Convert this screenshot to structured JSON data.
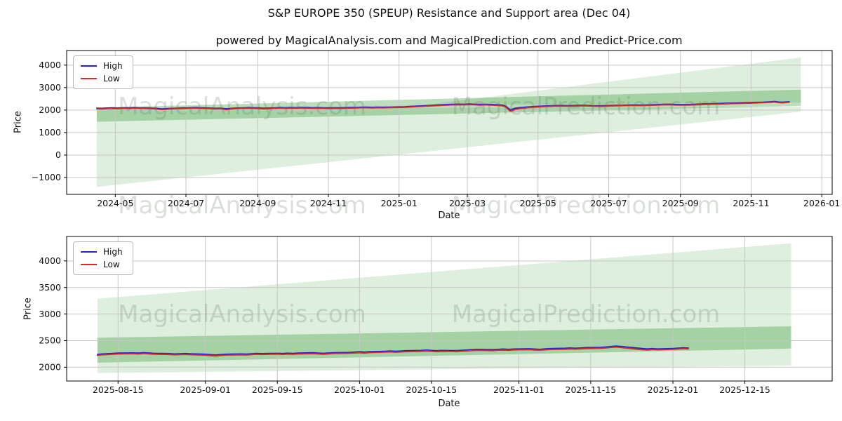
{
  "figure": {
    "title": "S&P EUROPE 350 (SPEUP) Resistance and Support area (Dec 04)",
    "subtitle": "powered by MagicalAnalysis.com and MagicalPrediction.com and Predict-Price.com"
  },
  "watermark": {
    "analysis": "MagicalAnalysis.com",
    "prediction": "MagicalPrediction.com"
  },
  "colors": {
    "high_line": "#2424cc",
    "low_line": "#d42a2a",
    "band_green": "#008000",
    "grid": "#c6c6c6"
  },
  "chart_data": [
    {
      "type": "line",
      "title": "",
      "xlabel": "Date",
      "ylabel": "Price",
      "xlim": [
        "2024-03-20",
        "2026-01-10"
      ],
      "ylim": [
        -1750,
        4650
      ],
      "xticks": [
        "2024-05",
        "2024-07",
        "2024-09",
        "2024-11",
        "2025-01",
        "2025-03",
        "2025-05",
        "2025-07",
        "2025-09",
        "2025-11",
        "2026-01"
      ],
      "yticks": [
        -1000,
        0,
        1000,
        2000,
        3000,
        4000
      ],
      "grid": true,
      "legend_position": "upper left",
      "series": [
        {
          "name": "High",
          "color": "#2424cc"
        },
        {
          "name": "Low",
          "color": "#d42a2a"
        }
      ],
      "bands": [
        {
          "name": "support-area-light",
          "color": "#008000",
          "opacity": 0.13,
          "points": [
            [
              "2024-04-15",
              2060
            ],
            [
              "2025-12-14",
              2140
            ],
            [
              "2025-12-14",
              1930
            ],
            [
              "2024-04-15",
              -1420
            ]
          ]
        },
        {
          "name": "resistance-fan-light",
          "color": "#008000",
          "opacity": 0.13,
          "points": [
            [
              "2025-01-20",
              2210
            ],
            [
              "2025-12-14",
              4340
            ],
            [
              "2025-12-14",
              2330
            ]
          ]
        },
        {
          "name": "support-band-medium",
          "color": "#008000",
          "opacity": 0.26,
          "points": [
            [
              "2024-04-15",
              2110
            ],
            [
              "2025-12-14",
              2910
            ],
            [
              "2025-12-14",
              2180
            ],
            [
              "2024-04-15",
              1480
            ]
          ]
        }
      ],
      "rows": [
        [
          "2024-04-15",
          2085,
          2058
        ],
        [
          "2024-04-19",
          2076,
          2050
        ],
        [
          "2024-04-24",
          2092,
          2066
        ],
        [
          "2024-04-29",
          2098,
          2072
        ],
        [
          "2024-05-03",
          2090,
          2063
        ],
        [
          "2024-05-08",
          2105,
          2080
        ],
        [
          "2024-05-13",
          2098,
          2071
        ],
        [
          "2024-05-17",
          2112,
          2086
        ],
        [
          "2024-05-22",
          2104,
          2077
        ],
        [
          "2024-05-27",
          2097,
          2070
        ],
        [
          "2024-05-31",
          2090,
          2062
        ],
        [
          "2024-06-05",
          2082,
          2053
        ],
        [
          "2024-06-10",
          2052,
          2022
        ],
        [
          "2024-06-14",
          2066,
          2038
        ],
        [
          "2024-06-19",
          2078,
          2051
        ],
        [
          "2024-06-24",
          2088,
          2061
        ],
        [
          "2024-06-28",
          2096,
          2069
        ],
        [
          "2024-07-03",
          2104,
          2078
        ],
        [
          "2024-07-08",
          2112,
          2086
        ],
        [
          "2024-07-12",
          2106,
          2079
        ],
        [
          "2024-07-17",
          2098,
          2070
        ],
        [
          "2024-07-22",
          2090,
          2061
        ],
        [
          "2024-07-26",
          2082,
          2052
        ],
        [
          "2024-07-31",
          2088,
          2058
        ],
        [
          "2024-08-05",
          2060,
          2018
        ],
        [
          "2024-08-09",
          2078,
          2048
        ],
        [
          "2024-08-14",
          2094,
          2068
        ],
        [
          "2024-08-19",
          2102,
          2077
        ],
        [
          "2024-08-23",
          2110,
          2085
        ],
        [
          "2024-08-28",
          2106,
          2081
        ],
        [
          "2024-09-02",
          2096,
          2068
        ],
        [
          "2024-09-06",
          2084,
          2055
        ],
        [
          "2024-09-11",
          2092,
          2064
        ],
        [
          "2024-09-16",
          2104,
          2078
        ],
        [
          "2024-09-20",
          2112,
          2087
        ],
        [
          "2024-09-25",
          2108,
          2082
        ],
        [
          "2024-09-30",
          2116,
          2091
        ],
        [
          "2024-10-04",
          2110,
          2083
        ],
        [
          "2024-10-09",
          2120,
          2094
        ],
        [
          "2024-10-14",
          2114,
          2088
        ],
        [
          "2024-10-18",
          2106,
          2079
        ],
        [
          "2024-10-23",
          2112,
          2085
        ],
        [
          "2024-10-28",
          2104,
          2076
        ],
        [
          "2024-11-01",
          2098,
          2069
        ],
        [
          "2024-11-06",
          2106,
          2078
        ],
        [
          "2024-11-11",
          2100,
          2072
        ],
        [
          "2024-11-15",
          2108,
          2081
        ],
        [
          "2024-11-20",
          2114,
          2088
        ],
        [
          "2024-11-25",
          2120,
          2095
        ],
        [
          "2024-11-29",
          2126,
          2101
        ],
        [
          "2024-12-04",
          2130,
          2104
        ],
        [
          "2024-12-09",
          2124,
          2097
        ],
        [
          "2024-12-13",
          2132,
          2106
        ],
        [
          "2024-12-18",
          2126,
          2099
        ],
        [
          "2024-12-23",
          2134,
          2108
        ],
        [
          "2024-12-30",
          2140,
          2114
        ],
        [
          "2025-01-06",
          2150,
          2122
        ],
        [
          "2025-01-10",
          2162,
          2135
        ],
        [
          "2025-01-15",
          2175,
          2148
        ],
        [
          "2025-01-20",
          2188,
          2160
        ],
        [
          "2025-01-24",
          2200,
          2172
        ],
        [
          "2025-01-29",
          2212,
          2184
        ],
        [
          "2025-02-03",
          2224,
          2196
        ],
        [
          "2025-02-07",
          2236,
          2208
        ],
        [
          "2025-02-12",
          2248,
          2220
        ],
        [
          "2025-02-17",
          2258,
          2230
        ],
        [
          "2025-02-21",
          2266,
          2238
        ],
        [
          "2025-02-26",
          2260,
          2231
        ],
        [
          "2025-03-03",
          2272,
          2244
        ],
        [
          "2025-03-07",
          2262,
          2233
        ],
        [
          "2025-03-12",
          2252,
          2222
        ],
        [
          "2025-03-17",
          2258,
          2229
        ],
        [
          "2025-03-21",
          2248,
          2218
        ],
        [
          "2025-03-26",
          2240,
          2210
        ],
        [
          "2025-03-31",
          2222,
          2190
        ],
        [
          "2025-04-03",
          2180,
          2140
        ],
        [
          "2025-04-07",
          2005,
          1952
        ],
        [
          "2025-04-09",
          2040,
          1975
        ],
        [
          "2025-04-11",
          2080,
          2030
        ],
        [
          "2025-04-16",
          2112,
          2070
        ],
        [
          "2025-04-22",
          2140,
          2105
        ],
        [
          "2025-04-28",
          2162,
          2130
        ],
        [
          "2025-05-05",
          2178,
          2150
        ],
        [
          "2025-05-12",
          2192,
          2165
        ],
        [
          "2025-05-19",
          2205,
          2178
        ],
        [
          "2025-05-27",
          2198,
          2170
        ],
        [
          "2025-06-03",
          2208,
          2180
        ],
        [
          "2025-06-10",
          2215,
          2188
        ],
        [
          "2025-06-17",
          2200,
          2172
        ],
        [
          "2025-06-24",
          2192,
          2163
        ],
        [
          "2025-07-01",
          2205,
          2178
        ],
        [
          "2025-07-08",
          2215,
          2188
        ],
        [
          "2025-07-15",
          2222,
          2195
        ],
        [
          "2025-07-22",
          2230,
          2203
        ],
        [
          "2025-07-29",
          2224,
          2196
        ],
        [
          "2025-08-05",
          2235,
          2208
        ],
        [
          "2025-08-12",
          2245,
          2218
        ],
        [
          "2025-08-19",
          2262,
          2236
        ],
        [
          "2025-08-26",
          2255,
          2228
        ],
        [
          "2025-09-02",
          2246,
          2218
        ],
        [
          "2025-09-09",
          2252,
          2225
        ],
        [
          "2025-09-16",
          2265,
          2238
        ],
        [
          "2025-09-23",
          2278,
          2252
        ],
        [
          "2025-09-30",
          2288,
          2262
        ],
        [
          "2025-10-07",
          2298,
          2272
        ],
        [
          "2025-10-14",
          2312,
          2286
        ],
        [
          "2025-10-21",
          2320,
          2294
        ],
        [
          "2025-10-28",
          2330,
          2304
        ],
        [
          "2025-11-04",
          2342,
          2316
        ],
        [
          "2025-11-11",
          2352,
          2326
        ],
        [
          "2025-11-18",
          2372,
          2346
        ],
        [
          "2025-11-21",
          2388,
          2360
        ],
        [
          "2025-11-25",
          2360,
          2330
        ],
        [
          "2025-11-28",
          2352,
          2322
        ],
        [
          "2025-12-02",
          2366,
          2340
        ],
        [
          "2025-12-04",
          2372,
          2348
        ]
      ]
    },
    {
      "type": "line",
      "title": "",
      "xlabel": "Date",
      "ylabel": "Price",
      "xlim": [
        "2025-08-05",
        "2026-01-01"
      ],
      "ylim": [
        1740,
        4460
      ],
      "xticks": [
        "2025-08-15",
        "2025-09-01",
        "2025-09-15",
        "2025-10-01",
        "2025-10-15",
        "2025-11-01",
        "2025-11-15",
        "2025-12-01",
        "2025-12-15"
      ],
      "yticks": [
        2000,
        2500,
        3000,
        3500,
        4000
      ],
      "grid": true,
      "legend_position": "upper left",
      "series": [
        {
          "name": "High",
          "color": "#2424cc"
        },
        {
          "name": "Low",
          "color": "#d42a2a"
        }
      ],
      "bands": [
        {
          "name": "prediction-fan-light",
          "color": "#008000",
          "opacity": 0.13,
          "points": [
            [
              "2025-08-11",
              3290
            ],
            [
              "2025-12-24",
              4330
            ],
            [
              "2025-12-24",
              2030
            ],
            [
              "2025-08-11",
              1890
            ]
          ]
        },
        {
          "name": "support-band-medium",
          "color": "#008000",
          "opacity": 0.26,
          "points": [
            [
              "2025-08-11",
              2555
            ],
            [
              "2025-12-24",
              2770
            ],
            [
              "2025-12-24",
              2350
            ],
            [
              "2025-08-11",
              2085
            ]
          ]
        }
      ],
      "rows": [
        [
          "2025-08-11",
          2242,
          2225
        ],
        [
          "2025-08-12",
          2250,
          2232
        ],
        [
          "2025-08-13",
          2255,
          2238
        ],
        [
          "2025-08-14",
          2260,
          2243
        ],
        [
          "2025-08-15",
          2265,
          2248
        ],
        [
          "2025-08-18",
          2270,
          2254
        ],
        [
          "2025-08-19",
          2266,
          2249
        ],
        [
          "2025-08-20",
          2272,
          2256
        ],
        [
          "2025-08-21",
          2268,
          2251
        ],
        [
          "2025-08-22",
          2262,
          2245
        ],
        [
          "2025-08-25",
          2256,
          2239
        ],
        [
          "2025-08-26",
          2250,
          2233
        ],
        [
          "2025-08-27",
          2254,
          2237
        ],
        [
          "2025-08-28",
          2258,
          2241
        ],
        [
          "2025-08-29",
          2252,
          2235
        ],
        [
          "2025-09-01",
          2244,
          2226
        ],
        [
          "2025-09-02",
          2236,
          2218
        ],
        [
          "2025-09-03",
          2230,
          2211
        ],
        [
          "2025-09-04",
          2238,
          2220
        ],
        [
          "2025-09-05",
          2244,
          2227
        ],
        [
          "2025-09-08",
          2250,
          2233
        ],
        [
          "2025-09-09",
          2246,
          2228
        ],
        [
          "2025-09-10",
          2254,
          2237
        ],
        [
          "2025-09-11",
          2260,
          2243
        ],
        [
          "2025-09-12",
          2256,
          2239
        ],
        [
          "2025-09-15",
          2262,
          2246
        ],
        [
          "2025-09-16",
          2258,
          2240
        ],
        [
          "2025-09-17",
          2264,
          2247
        ],
        [
          "2025-09-18",
          2260,
          2242
        ],
        [
          "2025-09-19",
          2266,
          2249
        ],
        [
          "2025-09-22",
          2272,
          2255
        ],
        [
          "2025-09-23",
          2266,
          2248
        ],
        [
          "2025-09-24",
          2262,
          2244
        ],
        [
          "2025-09-25",
          2268,
          2251
        ],
        [
          "2025-09-26",
          2274,
          2257
        ],
        [
          "2025-09-29",
          2278,
          2261
        ],
        [
          "2025-09-30",
          2284,
          2267
        ],
        [
          "2025-10-01",
          2290,
          2272
        ],
        [
          "2025-10-02",
          2284,
          2266
        ],
        [
          "2025-10-03",
          2292,
          2275
        ],
        [
          "2025-10-06",
          2300,
          2283
        ],
        [
          "2025-10-07",
          2306,
          2288
        ],
        [
          "2025-10-08",
          2298,
          2281
        ],
        [
          "2025-10-09",
          2304,
          2287
        ],
        [
          "2025-10-10",
          2310,
          2292
        ],
        [
          "2025-10-13",
          2316,
          2299
        ],
        [
          "2025-10-14",
          2322,
          2305
        ],
        [
          "2025-10-15",
          2316,
          2298
        ],
        [
          "2025-10-16",
          2310,
          2292
        ],
        [
          "2025-10-17",
          2316,
          2299
        ],
        [
          "2025-10-20",
          2312,
          2294
        ],
        [
          "2025-10-21",
          2318,
          2301
        ],
        [
          "2025-10-22",
          2324,
          2306
        ],
        [
          "2025-10-23",
          2330,
          2313
        ],
        [
          "2025-10-24",
          2336,
          2318
        ],
        [
          "2025-10-27",
          2330,
          2312
        ],
        [
          "2025-10-28",
          2336,
          2319
        ],
        [
          "2025-10-29",
          2342,
          2324
        ],
        [
          "2025-10-30",
          2336,
          2318
        ],
        [
          "2025-10-31",
          2342,
          2325
        ],
        [
          "2025-11-03",
          2348,
          2330
        ],
        [
          "2025-11-04",
          2342,
          2324
        ],
        [
          "2025-11-05",
          2336,
          2319
        ],
        [
          "2025-11-06",
          2344,
          2326
        ],
        [
          "2025-11-07",
          2350,
          2333
        ],
        [
          "2025-11-10",
          2356,
          2338
        ],
        [
          "2025-11-11",
          2362,
          2344
        ],
        [
          "2025-11-12",
          2356,
          2339
        ],
        [
          "2025-11-13",
          2362,
          2345
        ],
        [
          "2025-11-14",
          2368,
          2350
        ],
        [
          "2025-11-17",
          2374,
          2356
        ],
        [
          "2025-11-18",
          2380,
          2362
        ],
        [
          "2025-11-19",
          2390,
          2372
        ],
        [
          "2025-11-20",
          2398,
          2379
        ],
        [
          "2025-11-21",
          2390,
          2368
        ],
        [
          "2025-11-24",
          2362,
          2338
        ],
        [
          "2025-11-25",
          2352,
          2330
        ],
        [
          "2025-11-26",
          2344,
          2324
        ],
        [
          "2025-11-27",
          2350,
          2332
        ],
        [
          "2025-11-28",
          2344,
          2326
        ],
        [
          "2025-12-01",
          2352,
          2336
        ],
        [
          "2025-12-02",
          2358,
          2342
        ],
        [
          "2025-12-03",
          2364,
          2348
        ],
        [
          "2025-12-04",
          2360,
          2345
        ]
      ]
    }
  ]
}
